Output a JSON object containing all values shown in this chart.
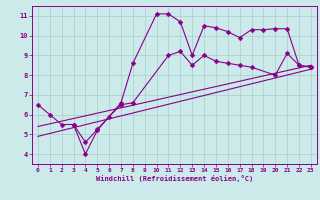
{
  "bg_color": "#cceaea",
  "line_color": "#880088",
  "xlabel": "Windchill (Refroidissement éolien,°C)",
  "xlim": [
    -0.5,
    23.5
  ],
  "ylim": [
    3.5,
    11.5
  ],
  "xticks": [
    0,
    1,
    2,
    3,
    4,
    5,
    6,
    7,
    8,
    9,
    10,
    11,
    12,
    13,
    14,
    15,
    16,
    17,
    18,
    19,
    20,
    21,
    22,
    23
  ],
  "yticks": [
    4,
    5,
    6,
    7,
    8,
    9,
    10,
    11
  ],
  "grid_color": "#aacccc",
  "series": [
    {
      "x": [
        0,
        1,
        2,
        3,
        4,
        5,
        7,
        8,
        10,
        11,
        12,
        13,
        14,
        15,
        16,
        17,
        18,
        19,
        20,
        21,
        22,
        23
      ],
      "y": [
        6.5,
        6.0,
        5.5,
        5.5,
        4.0,
        5.2,
        6.6,
        8.6,
        11.1,
        11.1,
        10.7,
        9.0,
        10.5,
        10.4,
        10.2,
        9.9,
        10.3,
        10.3,
        10.35,
        10.35,
        8.5,
        8.4
      ],
      "marker": "D",
      "markersize": 2.5,
      "lw": 0.8
    },
    {
      "x": [
        3,
        4,
        5,
        6,
        7,
        8,
        11,
        12,
        13,
        14,
        15,
        16,
        17,
        18,
        20,
        21,
        22,
        23
      ],
      "y": [
        5.5,
        4.6,
        5.25,
        5.9,
        6.5,
        6.6,
        9.0,
        9.2,
        8.5,
        9.0,
        8.7,
        8.6,
        8.5,
        8.4,
        8.0,
        9.1,
        8.5,
        8.4
      ],
      "marker": "D",
      "markersize": 2.5,
      "lw": 0.8
    },
    {
      "x": [
        0,
        23
      ],
      "y": [
        5.4,
        8.5
      ],
      "marker": null,
      "markersize": 0,
      "lw": 0.8
    },
    {
      "x": [
        0,
        23
      ],
      "y": [
        4.9,
        8.3
      ],
      "marker": null,
      "markersize": 0,
      "lw": 0.8
    }
  ]
}
